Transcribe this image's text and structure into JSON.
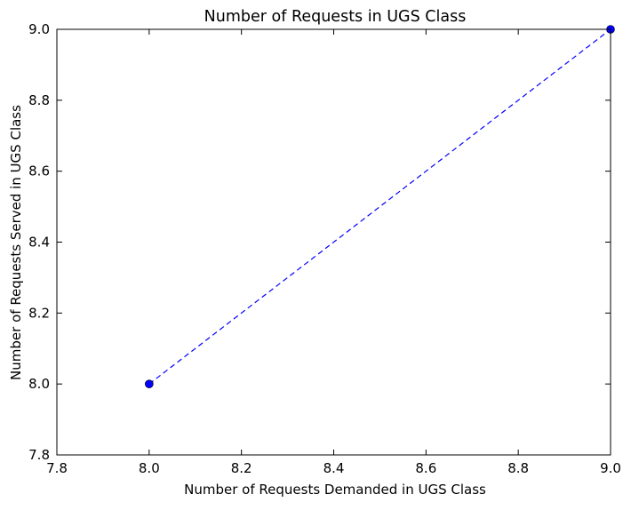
{
  "chart_data": {
    "type": "line",
    "title": "Number of Requests in UGS Class",
    "xlabel": "Number of Requests Demanded in UGS Class",
    "ylabel": "Number of Requests Served in UGS Class",
    "xlim": [
      7.8,
      9.0
    ],
    "ylim": [
      7.8,
      9.0
    ],
    "x_ticks": [
      "7.8",
      "8.0",
      "8.2",
      "8.4",
      "8.6",
      "8.8",
      "9.0"
    ],
    "y_ticks": [
      "7.8",
      "8.0",
      "8.2",
      "8.4",
      "8.6",
      "8.8",
      "9.0"
    ],
    "grid": false,
    "legend": "none",
    "series": [
      {
        "color": "#0000ff",
        "line_style": "dashed",
        "marker": "circle",
        "points": [
          {
            "x": 8.0,
            "y": 8.0
          },
          {
            "x": 9.0,
            "y": 9.0
          }
        ]
      }
    ]
  }
}
